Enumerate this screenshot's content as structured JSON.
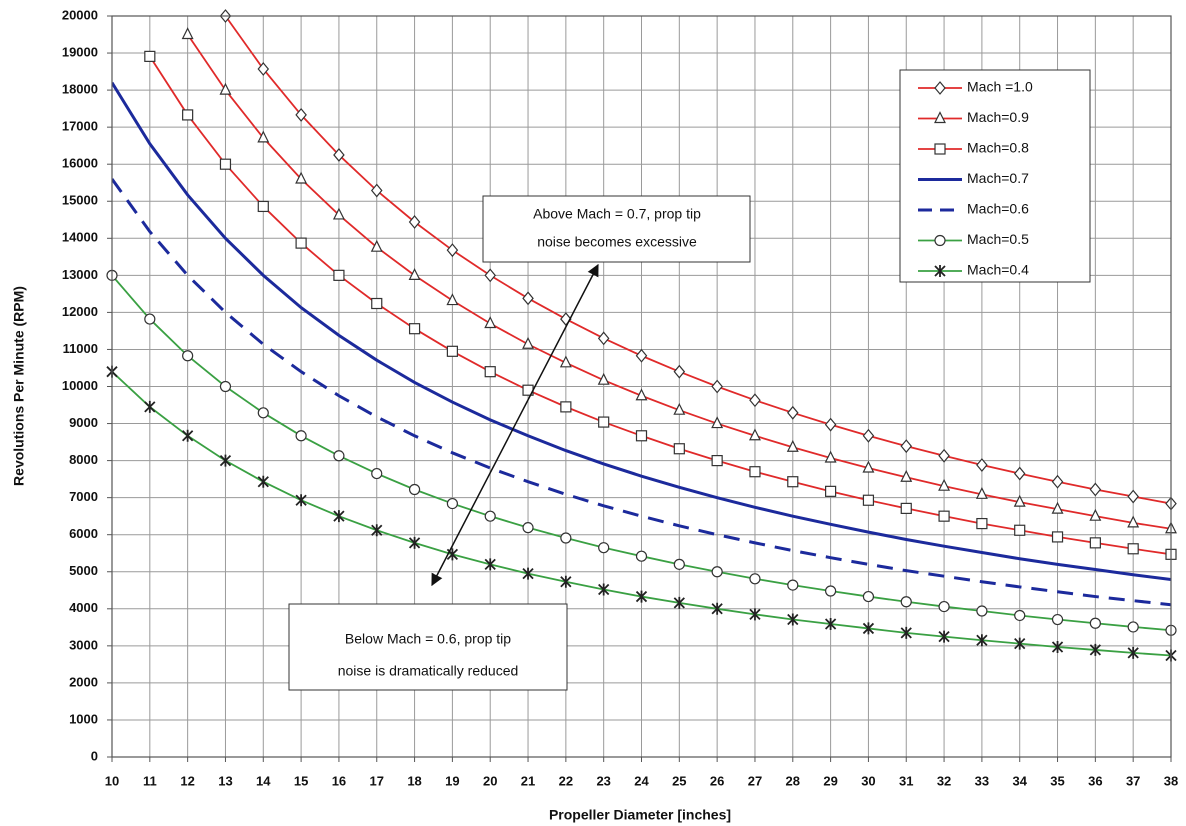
{
  "chart_data": {
    "type": "line",
    "x_label": "Propeller Diameter [inches]",
    "y_label": "Revolutions Per Minute  (RPM)",
    "x": [
      10,
      11,
      12,
      13,
      14,
      15,
      16,
      17,
      18,
      19,
      20,
      21,
      22,
      23,
      24,
      25,
      26,
      27,
      28,
      29,
      30,
      31,
      32,
      33,
      34,
      35,
      36,
      37,
      38
    ],
    "xlim": [
      10,
      38
    ],
    "xticks": [
      10,
      11,
      12,
      13,
      14,
      15,
      16,
      17,
      18,
      19,
      20,
      21,
      22,
      23,
      24,
      25,
      26,
      27,
      28,
      29,
      30,
      31,
      32,
      33,
      34,
      35,
      36,
      37,
      38
    ],
    "ylim": [
      0,
      20000
    ],
    "yticks": [
      0,
      1000,
      2000,
      3000,
      4000,
      5000,
      6000,
      7000,
      8000,
      9000,
      10000,
      11000,
      12000,
      13000,
      14000,
      15000,
      16000,
      17000,
      18000,
      19000,
      20000
    ],
    "grid": true,
    "legend": "top-right",
    "series": [
      {
        "name": "Mach =1.0",
        "color": "#e02a2a",
        "marker": "diamond",
        "dash": "solid",
        "values": [
          null,
          null,
          null,
          20000,
          18570,
          17330,
          16250,
          15290,
          14440,
          13680,
          13000,
          12380,
          11820,
          11300,
          10830,
          10400,
          10000,
          9630,
          9290,
          8970,
          8670,
          8390,
          8130,
          7880,
          7650,
          7430,
          7220,
          7030,
          6840
        ]
      },
      {
        "name": "Mach=0.9",
        "color": "#e02a2a",
        "marker": "triangle",
        "dash": "solid",
        "values": [
          null,
          null,
          19500,
          18000,
          16710,
          15600,
          14630,
          13760,
          13000,
          12320,
          11700,
          11140,
          10640,
          10170,
          9750,
          9360,
          9000,
          8670,
          8360,
          8070,
          7800,
          7550,
          7310,
          7090,
          6880,
          6690,
          6500,
          6320,
          6160
        ]
      },
      {
        "name": "Mach=0.8",
        "color": "#e02a2a",
        "marker": "square",
        "dash": "solid",
        "values": [
          null,
          18910,
          17330,
          16000,
          14860,
          13870,
          13000,
          12240,
          11560,
          10950,
          10400,
          9900,
          9450,
          9040,
          8670,
          8320,
          8000,
          7700,
          7430,
          7170,
          6930,
          6710,
          6500,
          6300,
          6120,
          5940,
          5780,
          5620,
          5470
        ]
      },
      {
        "name": "Mach=0.7",
        "color": "#1c2a9c",
        "marker": "none",
        "dash": "solid",
        "values": [
          18200,
          16550,
          15170,
          14000,
          13000,
          12130,
          11380,
          10710,
          10110,
          9580,
          9100,
          8670,
          8270,
          7910,
          7580,
          7280,
          7000,
          6740,
          6500,
          6280,
          6070,
          5870,
          5690,
          5520,
          5350,
          5200,
          5060,
          4920,
          4790
        ]
      },
      {
        "name": "Mach=0.6",
        "color": "#1c2a9c",
        "marker": "none",
        "dash": "dashed",
        "values": [
          15600,
          14180,
          13000,
          12000,
          11140,
          10400,
          9750,
          9180,
          8670,
          8210,
          7800,
          7430,
          7090,
          6780,
          6500,
          6240,
          6000,
          5780,
          5570,
          5380,
          5200,
          5030,
          4880,
          4730,
          4590,
          4460,
          4330,
          4220,
          4110
        ]
      },
      {
        "name": "Mach=0.5",
        "color": "#3aa043",
        "marker": "circle",
        "dash": "solid",
        "values": [
          13000,
          11820,
          10830,
          10000,
          9290,
          8670,
          8130,
          7650,
          7220,
          6840,
          6500,
          6190,
          5910,
          5650,
          5420,
          5200,
          5000,
          4810,
          4640,
          4480,
          4330,
          4190,
          4060,
          3940,
          3820,
          3710,
          3610,
          3510,
          3420
        ]
      },
      {
        "name": "Mach=0.4",
        "color": "#3aa043",
        "marker": "star",
        "dash": "solid",
        "values": [
          10400,
          9450,
          8670,
          8000,
          7430,
          6930,
          6500,
          6120,
          5780,
          5470,
          5200,
          4950,
          4730,
          4520,
          4330,
          4160,
          4000,
          3850,
          3710,
          3590,
          3470,
          3350,
          3250,
          3150,
          3060,
          2970,
          2890,
          2810,
          2740
        ]
      }
    ],
    "annotations": [
      {
        "lines": [
          "Above Mach = 0.7, prop tip",
          "noise becomes excessive"
        ]
      },
      {
        "lines": [
          "Below Mach = 0.6, prop tip",
          "noise is dramatically reduced"
        ]
      }
    ]
  }
}
